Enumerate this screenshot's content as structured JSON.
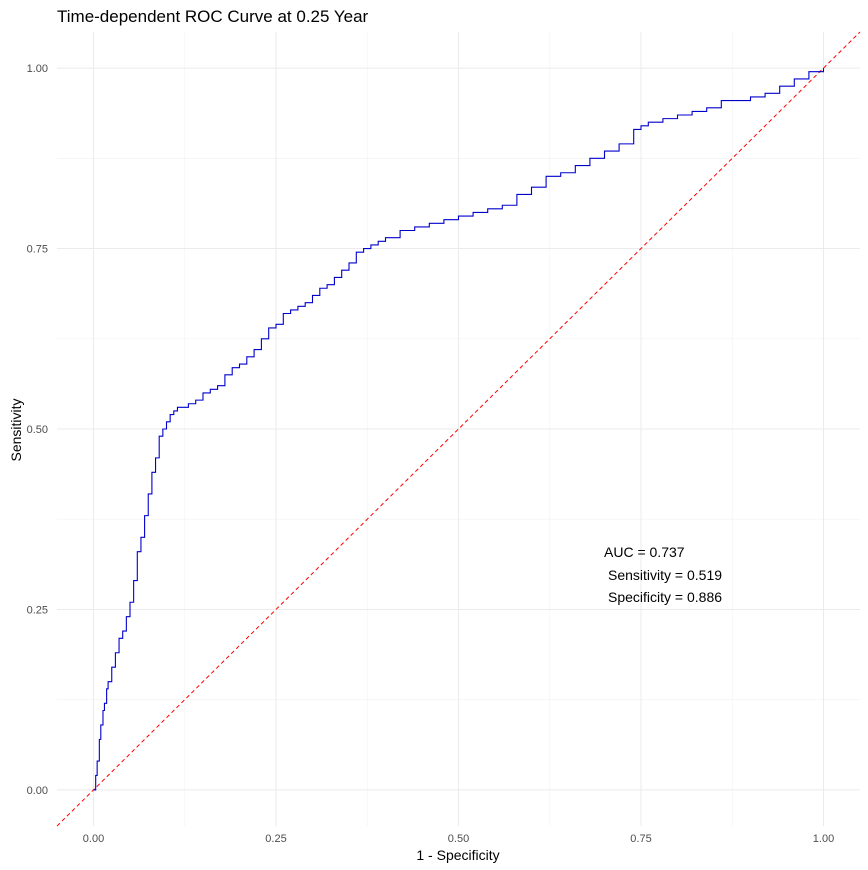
{
  "chart_data": {
    "type": "line",
    "title": "Time-dependent ROC Curve at 0.25 Year",
    "xlabel": "1 - Specificity",
    "ylabel": "Sensitivity",
    "xlim": [
      -0.05,
      1.05
    ],
    "ylim": [
      -0.05,
      1.05
    ],
    "x_ticks": [
      0.0,
      0.25,
      0.5,
      0.75,
      1.0
    ],
    "x_tick_labels": [
      "0.00",
      "0.25",
      "0.50",
      "0.75",
      "1.00"
    ],
    "y_ticks": [
      0.0,
      0.25,
      0.5,
      0.75,
      1.0
    ],
    "y_tick_labels": [
      "0.00",
      "0.25",
      "0.50",
      "0.75",
      "1.00"
    ],
    "grid": true,
    "series": [
      {
        "color": "#0000cc",
        "style": "solid",
        "x": [
          0.0,
          0.003,
          0.005,
          0.008,
          0.01,
          0.013,
          0.015,
          0.018,
          0.02,
          0.025,
          0.03,
          0.035,
          0.04,
          0.045,
          0.05,
          0.055,
          0.06,
          0.065,
          0.07,
          0.075,
          0.08,
          0.085,
          0.09,
          0.095,
          0.1,
          0.105,
          0.11,
          0.115,
          0.12,
          0.13,
          0.14,
          0.15,
          0.16,
          0.17,
          0.18,
          0.19,
          0.2,
          0.21,
          0.22,
          0.23,
          0.24,
          0.25,
          0.26,
          0.27,
          0.28,
          0.29,
          0.3,
          0.31,
          0.32,
          0.33,
          0.34,
          0.35,
          0.36,
          0.37,
          0.38,
          0.39,
          0.4,
          0.42,
          0.44,
          0.46,
          0.48,
          0.5,
          0.52,
          0.54,
          0.56,
          0.58,
          0.6,
          0.62,
          0.64,
          0.66,
          0.68,
          0.7,
          0.72,
          0.74,
          0.75,
          0.76,
          0.78,
          0.8,
          0.82,
          0.84,
          0.86,
          0.88,
          0.9,
          0.92,
          0.94,
          0.96,
          0.98,
          1.0
        ],
        "y": [
          0.0,
          0.02,
          0.04,
          0.07,
          0.09,
          0.11,
          0.12,
          0.14,
          0.15,
          0.17,
          0.19,
          0.21,
          0.22,
          0.24,
          0.26,
          0.29,
          0.33,
          0.35,
          0.38,
          0.41,
          0.44,
          0.46,
          0.49,
          0.5,
          0.51,
          0.52,
          0.525,
          0.53,
          0.53,
          0.535,
          0.54,
          0.55,
          0.555,
          0.56,
          0.575,
          0.585,
          0.59,
          0.6,
          0.61,
          0.625,
          0.64,
          0.645,
          0.66,
          0.665,
          0.67,
          0.675,
          0.685,
          0.695,
          0.7,
          0.71,
          0.72,
          0.73,
          0.745,
          0.75,
          0.755,
          0.76,
          0.765,
          0.775,
          0.78,
          0.785,
          0.79,
          0.795,
          0.8,
          0.805,
          0.81,
          0.825,
          0.835,
          0.85,
          0.855,
          0.865,
          0.875,
          0.885,
          0.895,
          0.915,
          0.92,
          0.925,
          0.93,
          0.935,
          0.94,
          0.945,
          0.955,
          0.955,
          0.96,
          0.965,
          0.975,
          0.985,
          0.995,
          1.0
        ]
      },
      {
        "color": "#ff0000",
        "style": "dashed",
        "x": [
          -0.05,
          1.05
        ],
        "y": [
          -0.05,
          1.05
        ]
      }
    ],
    "annotations": [
      "AUC = 0.737",
      "Sensitivity = 0.519",
      "Specificity = 0.886"
    ]
  }
}
